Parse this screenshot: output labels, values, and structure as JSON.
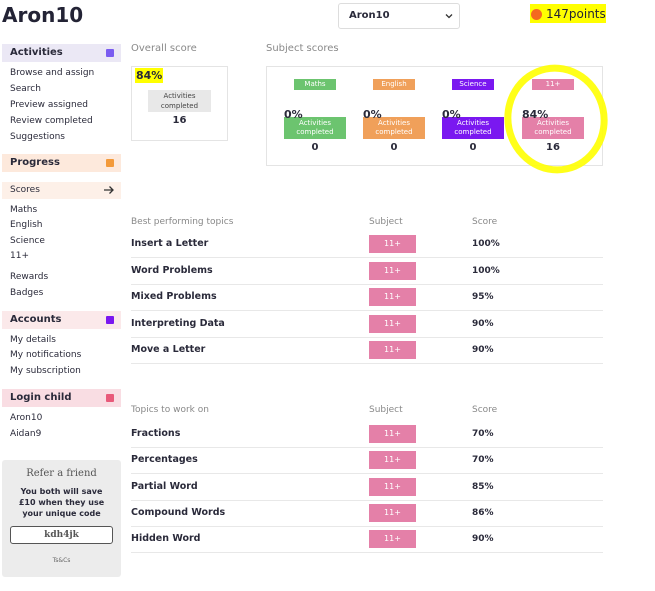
{
  "header": {
    "title": "Aron10",
    "child_select": "Aron10",
    "points": "147points"
  },
  "sidebar": {
    "sections": [
      {
        "title": "Activities",
        "items": [
          "Browse and assign",
          "Search",
          "Preview assigned",
          "Review completed",
          "Suggestions"
        ]
      },
      {
        "title": "Progress",
        "items": [
          "Scores",
          "Maths",
          "English",
          "Science",
          "11+",
          "Rewards",
          "Badges"
        ]
      },
      {
        "title": "Accounts",
        "items": [
          "My details",
          "My notifications",
          "My subscription"
        ]
      },
      {
        "title": "Login child",
        "items": [
          "Aron10",
          "Aidan9"
        ]
      }
    ],
    "refer": {
      "title": "Refer a friend",
      "text": "You both will save £10 when they use your unique code",
      "code": "kdh4jk",
      "terms": "Ts&Cs"
    }
  },
  "overall": {
    "title": "Overall score",
    "percent": "84%",
    "label": "Activities completed",
    "count": 16
  },
  "subjects": {
    "title": "Subject scores",
    "items": [
      {
        "name": "Maths",
        "percent": "0%",
        "label": "Activities completed",
        "count": 0
      },
      {
        "name": "English",
        "percent": "0%",
        "label": "Activities completed",
        "count": 0
      },
      {
        "name": "Science",
        "percent": "0%",
        "label": "Activities completed",
        "count": 0
      },
      {
        "name": "11+",
        "percent": "84%",
        "label": "Activities completed",
        "count": 16
      }
    ]
  },
  "tables": [
    {
      "headers": [
        "Best performing topics",
        "Subject",
        "Score"
      ],
      "rows": [
        [
          "Insert a Letter",
          "11+",
          "100%"
        ],
        [
          "Word Problems",
          "11+",
          "100%"
        ],
        [
          "Mixed Problems",
          "11+",
          "95%"
        ],
        [
          "Interpreting Data",
          "11+",
          "90%"
        ],
        [
          "Move a Letter",
          "11+",
          "90%"
        ]
      ]
    },
    {
      "headers": [
        "Topics to work on",
        "Subject",
        "Score"
      ],
      "rows": [
        [
          "Fractions",
          "11+",
          "70%"
        ],
        [
          "Percentages",
          "11+",
          "70%"
        ],
        [
          "Partial Word",
          "11+",
          "85%"
        ],
        [
          "Compound Words",
          "11+",
          "86%"
        ],
        [
          "Hidden Word",
          "11+",
          "90%"
        ]
      ]
    }
  ]
}
